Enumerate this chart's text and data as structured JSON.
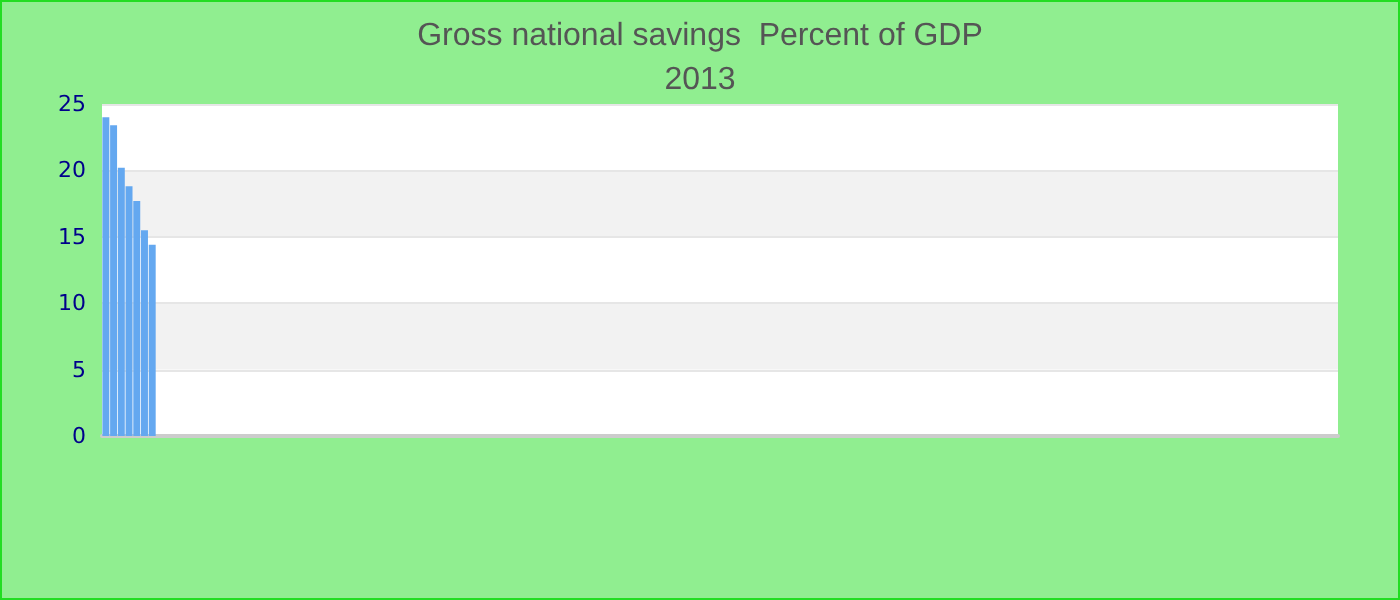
{
  "chart_data": {
    "type": "bar",
    "title": "Gross national savings  Percent of GDP",
    "subtitle": "2013",
    "categories": [
      null,
      null,
      null,
      null,
      null,
      null,
      null,
      null,
      null,
      null,
      null,
      null,
      null,
      null,
      null,
      null,
      null,
      null,
      null,
      null,
      null,
      null,
      null,
      null,
      null,
      null,
      null,
      null,
      null,
      null,
      null,
      null,
      null,
      null,
      null,
      null,
      null,
      null,
      null,
      null,
      null,
      null,
      null,
      null,
      null,
      null,
      null,
      null,
      null,
      null,
      null,
      null,
      null,
      null,
      null,
      null,
      null,
      null,
      null,
      null,
      null,
      null,
      null,
      null,
      null,
      null,
      null,
      null,
      null,
      null,
      null,
      null,
      null,
      null,
      null,
      null,
      null,
      null,
      null,
      null,
      null,
      null,
      null,
      null,
      null,
      null,
      null,
      null,
      null,
      null,
      null,
      null,
      null,
      null,
      null,
      null,
      null,
      null,
      null,
      null,
      null,
      null,
      null,
      null,
      null,
      null,
      null,
      null,
      null,
      null,
      null,
      null,
      null,
      null,
      null,
      null,
      null,
      null,
      null,
      null,
      null,
      null,
      null,
      null,
      null,
      null,
      null,
      null,
      null,
      null,
      null,
      null,
      null,
      null,
      null,
      null,
      null,
      null,
      null,
      null,
      null,
      null,
      null,
      null,
      null,
      null,
      null,
      null,
      null,
      null,
      null,
      null,
      null,
      null,
      null,
      null,
      null,
      null,
      null,
      null
    ],
    "values": [
      24.0,
      23.4,
      20.2,
      18.8,
      17.7,
      15.5,
      14.4,
      null,
      null,
      null,
      null,
      null,
      null,
      null,
      null,
      null,
      null,
      null,
      null,
      null,
      null,
      null,
      null,
      null,
      null,
      null,
      null,
      null,
      null,
      null,
      null,
      null,
      null,
      null,
      null,
      null,
      null,
      null,
      null,
      null,
      null,
      null,
      null,
      null,
      null,
      null,
      null,
      null,
      null,
      null,
      null,
      null,
      null,
      null,
      null,
      null,
      null,
      null,
      null,
      null,
      null,
      null,
      null,
      null,
      null,
      null,
      null,
      null,
      null,
      null,
      null,
      null,
      null,
      null,
      null,
      null,
      null,
      null,
      null,
      null,
      null,
      null,
      null,
      null,
      null,
      null,
      null,
      null,
      null,
      null,
      null,
      null,
      null,
      null,
      null,
      null,
      null,
      null,
      null,
      null,
      null,
      null,
      null,
      null,
      null,
      null,
      null,
      null,
      null,
      null,
      null,
      null,
      null,
      null,
      null,
      null,
      null,
      null,
      null,
      null,
      null,
      null,
      null,
      null,
      null,
      null,
      null,
      null,
      null,
      null,
      null,
      null,
      null,
      null,
      null,
      null,
      null,
      null,
      null,
      null,
      null,
      null,
      null,
      null,
      null,
      null,
      null,
      null,
      null,
      null,
      null,
      null,
      null,
      null,
      null,
      null,
      null,
      null,
      null,
      null
    ],
    "color": "#64a8f0",
    "ylim": [
      0,
      25
    ],
    "yticks": [
      0,
      5,
      10,
      15,
      20,
      25
    ],
    "grid": "y",
    "tick_labels": "y"
  }
}
